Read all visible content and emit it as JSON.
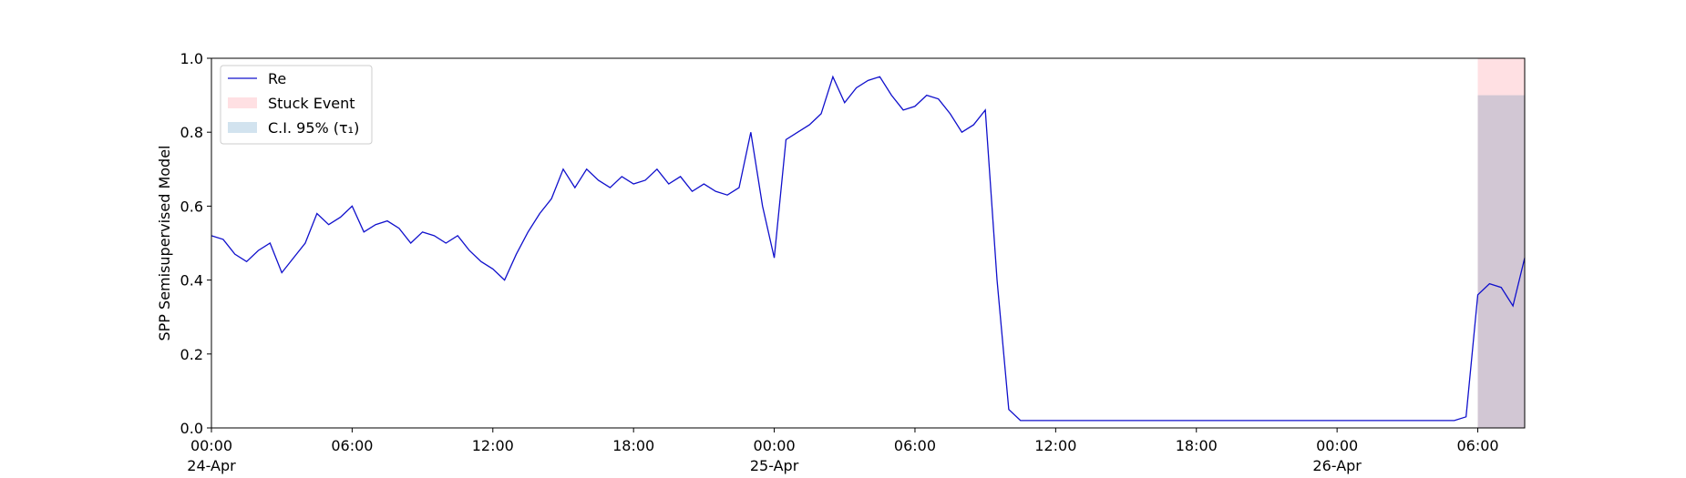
{
  "chart_data": {
    "type": "line",
    "ylabel": "SPP Semisupervised Model",
    "x": [
      "1999-04-24T00:00",
      "1999-04-24T00:30",
      "1999-04-24T01:00",
      "1999-04-24T01:30",
      "1999-04-24T02:00",
      "1999-04-24T02:30",
      "1999-04-24T03:00",
      "1999-04-24T03:30",
      "1999-04-24T04:00",
      "1999-04-24T04:30",
      "1999-04-24T05:00",
      "1999-04-24T05:30",
      "1999-04-24T06:00",
      "1999-04-24T06:30",
      "1999-04-24T07:00",
      "1999-04-24T07:30",
      "1999-04-24T08:00",
      "1999-04-24T08:30",
      "1999-04-24T09:00",
      "1999-04-24T09:30",
      "1999-04-24T10:00",
      "1999-04-24T10:30",
      "1999-04-24T11:00",
      "1999-04-24T11:30",
      "1999-04-24T12:00",
      "1999-04-24T12:30",
      "1999-04-24T13:00",
      "1999-04-24T13:30",
      "1999-04-24T14:00",
      "1999-04-24T14:30",
      "1999-04-24T15:00",
      "1999-04-24T15:30",
      "1999-04-24T16:00",
      "1999-04-24T16:30",
      "1999-04-24T17:00",
      "1999-04-24T17:30",
      "1999-04-24T18:00",
      "1999-04-24T18:30",
      "1999-04-24T19:00",
      "1999-04-24T19:30",
      "1999-04-24T20:00",
      "1999-04-24T20:30",
      "1999-04-24T21:00",
      "1999-04-24T21:30",
      "1999-04-24T22:00",
      "1999-04-24T22:30",
      "1999-04-24T23:00",
      "1999-04-24T23:30",
      "1999-04-25T00:00",
      "1999-04-25T00:30",
      "1999-04-25T01:00",
      "1999-04-25T01:30",
      "1999-04-25T02:00",
      "1999-04-25T02:30",
      "1999-04-25T03:00",
      "1999-04-25T03:30",
      "1999-04-25T04:00",
      "1999-04-25T04:30",
      "1999-04-25T05:00",
      "1999-04-25T05:30",
      "1999-04-25T06:00",
      "1999-04-25T06:30",
      "1999-04-25T07:00",
      "1999-04-25T07:30",
      "1999-04-25T08:00",
      "1999-04-25T08:30",
      "1999-04-25T09:00",
      "1999-04-25T09:30",
      "1999-04-25T10:00",
      "1999-04-25T10:30",
      "1999-04-25T11:00",
      "1999-04-25T11:30",
      "1999-04-25T12:00",
      "1999-04-25T12:30",
      "1999-04-25T13:00",
      "1999-04-25T13:30",
      "1999-04-25T14:00",
      "1999-04-25T14:30",
      "1999-04-25T15:00",
      "1999-04-25T15:30",
      "1999-04-25T16:00",
      "1999-04-25T16:30",
      "1999-04-25T17:00",
      "1999-04-25T17:30",
      "1999-04-25T18:00",
      "1999-04-25T18:30",
      "1999-04-25T19:00",
      "1999-04-25T19:30",
      "1999-04-25T20:00",
      "1999-04-25T20:30",
      "1999-04-25T21:00",
      "1999-04-25T21:30",
      "1999-04-25T22:00",
      "1999-04-25T22:30",
      "1999-04-25T23:00",
      "1999-04-25T23:30",
      "1999-04-26T00:00",
      "1999-04-26T00:30",
      "1999-04-26T01:00",
      "1999-04-26T01:30",
      "1999-04-26T02:00",
      "1999-04-26T02:30",
      "1999-04-26T03:00",
      "1999-04-26T03:30",
      "1999-04-26T04:00",
      "1999-04-26T04:30",
      "1999-04-26T05:00",
      "1999-04-26T05:30",
      "1999-04-26T06:00",
      "1999-04-26T06:30",
      "1999-04-26T07:00",
      "1999-04-26T07:30",
      "1999-04-26T08:00"
    ],
    "series": [
      {
        "name": "Re",
        "color": "#1010cc",
        "values": [
          0.52,
          0.51,
          0.47,
          0.45,
          0.48,
          0.5,
          0.42,
          0.46,
          0.5,
          0.58,
          0.55,
          0.57,
          0.6,
          0.53,
          0.55,
          0.56,
          0.54,
          0.5,
          0.53,
          0.52,
          0.5,
          0.52,
          0.48,
          0.45,
          0.43,
          0.4,
          0.47,
          0.53,
          0.58,
          0.62,
          0.7,
          0.65,
          0.7,
          0.67,
          0.65,
          0.68,
          0.66,
          0.67,
          0.7,
          0.66,
          0.68,
          0.64,
          0.66,
          0.64,
          0.63,
          0.65,
          0.8,
          0.6,
          0.46,
          0.78,
          0.8,
          0.82,
          0.85,
          0.95,
          0.88,
          0.92,
          0.94,
          0.95,
          0.9,
          0.86,
          0.87,
          0.9,
          0.89,
          0.85,
          0.8,
          0.82,
          0.86,
          0.4,
          0.05,
          0.02,
          0.02,
          0.02,
          0.02,
          0.02,
          0.02,
          0.02,
          0.02,
          0.02,
          0.02,
          0.02,
          0.02,
          0.02,
          0.02,
          0.02,
          0.02,
          0.02,
          0.02,
          0.02,
          0.02,
          0.02,
          0.02,
          0.02,
          0.02,
          0.02,
          0.02,
          0.02,
          0.02,
          0.02,
          0.02,
          0.02,
          0.02,
          0.02,
          0.02,
          0.02,
          0.02,
          0.02,
          0.02,
          0.03,
          0.36,
          0.39,
          0.38,
          0.33,
          0.46
        ]
      }
    ],
    "regions": [
      {
        "name": "Stuck Event",
        "color": "#ffe0e3",
        "x": [
          "1999-04-26T06:00",
          "1999-04-26T08:00"
        ],
        "y": [
          0,
          1
        ]
      },
      {
        "name": "C.I. 95% (τ₁)",
        "color": "#d2e3ef",
        "x": [
          "1999-04-26T06:00",
          "1999-04-26T08:00"
        ],
        "y": [
          0,
          0.9
        ]
      }
    ],
    "xlim": [
      "1999-04-24T00:00",
      "1999-04-26T08:00"
    ],
    "xticks": [
      {
        "value": "1999-04-24T00:00",
        "label": "00:00\n24-Apr\n1999"
      },
      {
        "value": "1999-04-24T06:00",
        "label": "06:00"
      },
      {
        "value": "1999-04-24T12:00",
        "label": "12:00"
      },
      {
        "value": "1999-04-24T18:00",
        "label": "18:00"
      },
      {
        "value": "1999-04-25T00:00",
        "label": "00:00\n25-Apr"
      },
      {
        "value": "1999-04-25T06:00",
        "label": "06:00"
      },
      {
        "value": "1999-04-25T12:00",
        "label": "12:00"
      },
      {
        "value": "1999-04-25T18:00",
        "label": "18:00"
      },
      {
        "value": "1999-04-26T00:00",
        "label": "00:00\n26-Apr"
      },
      {
        "value": "1999-04-26T06:00",
        "label": "06:00"
      }
    ],
    "ylim": [
      0,
      1
    ],
    "yticks": [
      {
        "value": 0,
        "label": "0.0"
      },
      0.2,
      0.4,
      0.6,
      0.8,
      {
        "value": 1,
        "label": "1.0"
      }
    ],
    "legend": "upper left"
  }
}
